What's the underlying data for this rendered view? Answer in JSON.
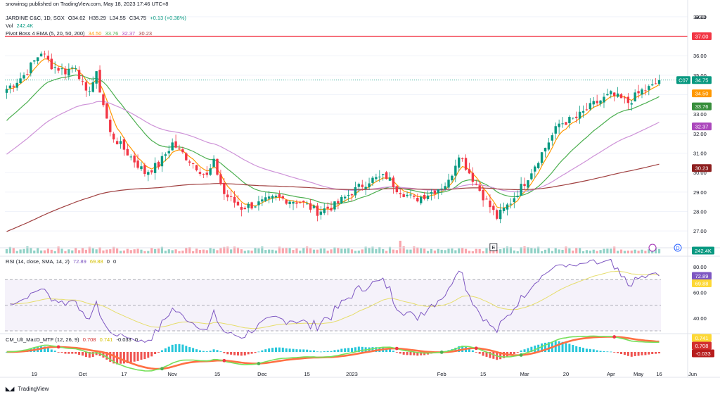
{
  "publish_note": "snowinsg published on TradingView.com, May 18, 2023 17:46 UTC+8",
  "symbol": {
    "name": "JARDINE C&C, 1D, SGX",
    "open": "O34.62",
    "high": "H35.29",
    "low": "L34.55",
    "close": "C34.75",
    "change": "+0.13 (+0.38%)"
  },
  "volume_legend": {
    "label": "Vol",
    "value": "242.4K"
  },
  "ema_legend": {
    "label": "Pivot Boss 4 EMA (5, 20, 50, 200)",
    "values": [
      "34.50",
      "33.76",
      "32.37",
      "30.23"
    ]
  },
  "rsi_legend": {
    "label": "RSI (14, close, SMA, 14, 2)",
    "values": [
      "72.89",
      "69.88",
      "0",
      "0"
    ]
  },
  "macd_legend": {
    "label": "CM_Ult_MacD_MTF (12, 26, 9)",
    "values": [
      "0.708",
      "0.741",
      "-0.033",
      "0"
    ]
  },
  "currency": "SGD",
  "footer": {
    "brand": "TradingView"
  },
  "event_markers": [
    "E",
    "D"
  ],
  "price_axis": [
    "38.00",
    "37.00",
    "36.00",
    "35.00",
    "34.00",
    "33.00",
    "32.00",
    "31.00",
    "30.00",
    "29.00",
    "28.00",
    "27.00"
  ],
  "rsi_axis": [
    "80.00",
    "60.00",
    "40.00"
  ],
  "price_tags": [
    {
      "label": "37.00",
      "value": 37.0,
      "color": "#f23645"
    },
    {
      "label": "C07",
      "value": 34.75,
      "color": "#089981"
    },
    {
      "label": "34.75",
      "value": 34.75,
      "color": "#089981"
    },
    {
      "label": "34.50",
      "value": 34.5,
      "color": "#ff9800"
    },
    {
      "label": "33.76",
      "value": 33.76,
      "color": "#388e3c"
    },
    {
      "label": "32.37",
      "value": 32.37,
      "color": "#ab47bc"
    },
    {
      "label": "30.23",
      "value": 30.23,
      "color": "#8d1f1f"
    },
    {
      "label": "242.4K",
      "value": 0,
      "color": "#089981"
    }
  ],
  "rsi_tags": [
    {
      "label": "72.89",
      "value": 72.89,
      "color": "#7e57c2"
    },
    {
      "label": "69.88",
      "value": 69.88,
      "color": "#fdd835"
    }
  ],
  "macd_tags": [
    {
      "label": "0.741",
      "value": 0.741,
      "color": "#fdd835"
    },
    {
      "label": "0.708",
      "value": 0.708,
      "color": "#d32f2f"
    },
    {
      "label": "-0.033",
      "value": -0.033,
      "color": "#b71c1c"
    }
  ],
  "chart_data": [
    {
      "type": "candlestick",
      "title": "JARDINE C&C, 1D, SGX",
      "x_ticks": [
        "19",
        "Oct",
        "17",
        "Nov",
        "15",
        "Dec",
        "15",
        "2023",
        "Feb",
        "15",
        "Mar",
        "20",
        "Apr",
        "May",
        "16",
        "Jun"
      ],
      "ylim": [
        26.5,
        38.5
      ],
      "horizontal_line": 37.0,
      "last_close": 34.75,
      "close_anchors": [
        {
          "x": 0,
          "close": 34.3
        },
        {
          "x": 5,
          "close": 35.0
        },
        {
          "x": 10,
          "close": 36.2
        },
        {
          "x": 13,
          "close": 35.5
        },
        {
          "x": 17,
          "close": 35.2
        },
        {
          "x": 20,
          "close": 35.5
        },
        {
          "x": 23,
          "close": 34.0
        },
        {
          "x": 26,
          "close": 35.0
        },
        {
          "x": 30,
          "close": 32.0
        },
        {
          "x": 35,
          "close": 31.0
        },
        {
          "x": 40,
          "close": 30.0
        },
        {
          "x": 44,
          "close": 30.4
        },
        {
          "x": 48,
          "close": 31.5
        },
        {
          "x": 52,
          "close": 30.8
        },
        {
          "x": 55,
          "close": 30.3
        },
        {
          "x": 58,
          "close": 29.8
        },
        {
          "x": 60,
          "close": 30.5
        },
        {
          "x": 63,
          "close": 28.9
        },
        {
          "x": 68,
          "close": 28.2
        },
        {
          "x": 73,
          "close": 28.4
        },
        {
          "x": 78,
          "close": 28.7
        },
        {
          "x": 85,
          "close": 28.5
        },
        {
          "x": 90,
          "close": 28.0
        },
        {
          "x": 95,
          "close": 28.3
        },
        {
          "x": 100,
          "close": 29.0
        },
        {
          "x": 105,
          "close": 29.6
        },
        {
          "x": 110,
          "close": 29.8
        },
        {
          "x": 113,
          "close": 29.2
        },
        {
          "x": 118,
          "close": 28.6
        },
        {
          "x": 123,
          "close": 29.0
        },
        {
          "x": 128,
          "close": 29.5
        },
        {
          "x": 131,
          "close": 31.0
        },
        {
          "x": 134,
          "close": 30.0
        },
        {
          "x": 138,
          "close": 28.8
        },
        {
          "x": 142,
          "close": 27.7
        },
        {
          "x": 146,
          "close": 28.5
        },
        {
          "x": 150,
          "close": 29.5
        },
        {
          "x": 155,
          "close": 31.0
        },
        {
          "x": 160,
          "close": 32.5
        },
        {
          "x": 165,
          "close": 32.8
        },
        {
          "x": 170,
          "close": 33.5
        },
        {
          "x": 175,
          "close": 34.0
        },
        {
          "x": 180,
          "close": 33.6
        },
        {
          "x": 184,
          "close": 34.2
        },
        {
          "x": 187,
          "close": 34.4
        },
        {
          "x": 189,
          "close": 34.75
        }
      ],
      "ema": [
        {
          "name": "EMA 5",
          "period": 5,
          "color": "#ff9800"
        },
        {
          "name": "EMA 20",
          "period": 20,
          "color": "#4caf50"
        },
        {
          "name": "EMA 50",
          "period": 50,
          "color": "#ce93d8"
        },
        {
          "name": "EMA 200",
          "period": 200,
          "color": "#a04040"
        }
      ],
      "ema_start": [
        34.2,
        32.5,
        30.8,
        26.9
      ],
      "volume_last": "242.4K"
    },
    {
      "type": "line",
      "title": "RSI (14, close, SMA, 14, 2)",
      "ylim": [
        30,
        85
      ],
      "bands": [
        70,
        50,
        30
      ],
      "last": [
        72.89,
        69.88
      ]
    },
    {
      "type": "line",
      "title": "CM_Ult_MacD_MTF (12, 26, 9)",
      "last": [
        0.708,
        0.741,
        -0.033
      ]
    }
  ]
}
